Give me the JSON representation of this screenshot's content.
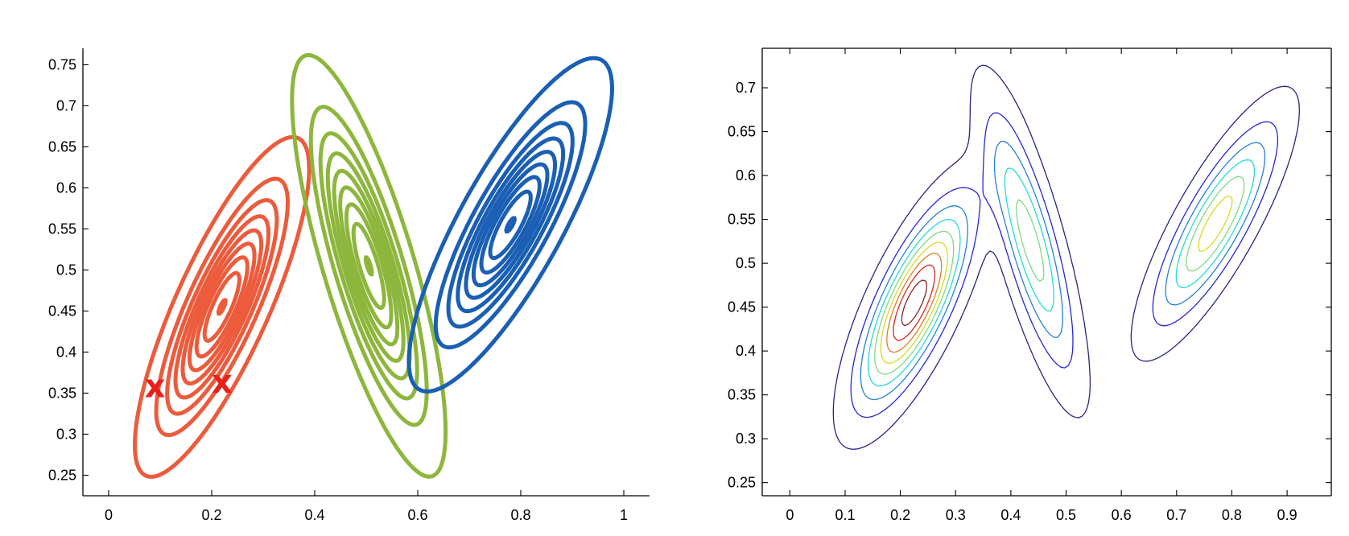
{
  "chart_data": [
    {
      "type": "contour",
      "title": "",
      "xlabel": "",
      "ylabel": "",
      "xlim": [
        -0.05,
        1.05
      ],
      "ylim": [
        0.225,
        0.77
      ],
      "xticks": [
        0,
        0.2,
        0.4,
        0.6,
        0.8,
        1
      ],
      "xtick_labels": [
        "0",
        "0.2",
        "0.4",
        "0.6",
        "0.8",
        "1"
      ],
      "yticks": [
        0.25,
        0.3,
        0.35,
        0.4,
        0.45,
        0.5,
        0.55,
        0.6,
        0.65,
        0.7,
        0.75
      ],
      "ytick_labels": [
        "0.25",
        "0.3",
        "0.35",
        "0.4",
        "0.45",
        "0.5",
        "0.55",
        "0.6",
        "0.65",
        "0.7",
        "0.75"
      ],
      "grid": false,
      "box": false,
      "series": [
        {
          "color": "#ec5b3c",
          "line_width": 5,
          "center": [
            0.22,
            0.455
          ],
          "semi_axes": [
            0.255,
            0.08
          ],
          "angle_deg": 52,
          "levels": [
            0.04,
            0.16,
            0.28,
            0.4,
            0.52,
            0.64,
            0.76,
            0.88,
            1.0
          ]
        },
        {
          "color": "#8db63c",
          "line_width": 5,
          "center": [
            0.505,
            0.505
          ],
          "semi_axes": [
            0.285,
            0.083
          ],
          "angle_deg": -63,
          "levels": [
            0.04,
            0.16,
            0.28,
            0.4,
            0.52,
            0.64,
            0.76,
            0.88,
            1.0
          ]
        },
        {
          "color": "#1a5fb4",
          "line_width": 5,
          "center": [
            0.78,
            0.555
          ],
          "semi_axes": [
            0.27,
            0.085
          ],
          "angle_deg": 46,
          "levels": [
            0.03,
            0.15,
            0.27,
            0.39,
            0.51,
            0.63,
            0.75,
            0.87,
            1.0
          ]
        }
      ],
      "markers": [
        {
          "label": "x",
          "x": 0.09,
          "y": 0.357,
          "color": "#e8201a"
        },
        {
          "label": "x",
          "x": 0.22,
          "y": 0.362,
          "color": "#e8201a"
        }
      ]
    },
    {
      "type": "contour",
      "title": "",
      "xlabel": "",
      "ylabel": "",
      "xlim": [
        -0.05,
        0.98
      ],
      "ylim": [
        0.235,
        0.745
      ],
      "xticks": [
        0,
        0.1,
        0.2,
        0.3,
        0.4,
        0.5,
        0.6,
        0.7,
        0.8,
        0.9
      ],
      "xtick_labels": [
        "0",
        "0.1",
        "0.2",
        "0.3",
        "0.4",
        "0.5",
        "0.6",
        "0.7",
        "0.8",
        "0.9"
      ],
      "yticks": [
        0.25,
        0.3,
        0.35,
        0.4,
        0.45,
        0.5,
        0.55,
        0.6,
        0.65,
        0.7
      ],
      "ytick_labels": [
        "0.25",
        "0.3",
        "0.35",
        "0.4",
        "0.45",
        "0.5",
        "0.55",
        "0.6",
        "0.65",
        "0.7"
      ],
      "grid": false,
      "box": true,
      "colormap": "jet",
      "line_width": 1.3,
      "components": [
        {
          "weight": 0.45,
          "center": [
            0.225,
            0.455
          ],
          "semi_axes": [
            0.255,
            0.095
          ],
          "angle_deg": 50
        },
        {
          "weight": 0.25,
          "center": [
            0.435,
            0.525
          ],
          "semi_axes": [
            0.3,
            0.082
          ],
          "angle_deg": -65
        },
        {
          "weight": 0.3,
          "center": [
            0.77,
            0.545
          ],
          "semi_axes": [
            0.275,
            0.085
          ],
          "angle_deg": 46
        }
      ],
      "levels": [
        0.05,
        0.16,
        0.27,
        0.38,
        0.49,
        0.6,
        0.71,
        0.82,
        0.93
      ]
    }
  ]
}
